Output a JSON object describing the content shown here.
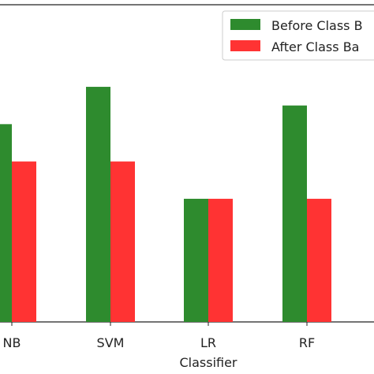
{
  "chart_data": {
    "type": "bar",
    "xlabel": "Classifier",
    "categories": [
      "NB",
      "SVM",
      "LR",
      "RF"
    ],
    "series": [
      {
        "name": "Before Class Balancing",
        "legend_text": "Before Class B",
        "color": "#2e8b2e",
        "values": [
          10.6,
          12.6,
          6.6,
          11.6
        ]
      },
      {
        "name": "After Class Balancing",
        "legend_text": "After Class Ba",
        "color": "#ff3333",
        "values": [
          8.6,
          8.6,
          6.6,
          6.6
        ]
      }
    ],
    "ylim": [
      0,
      17
    ],
    "grid": false,
    "legend_position": "top-right"
  }
}
